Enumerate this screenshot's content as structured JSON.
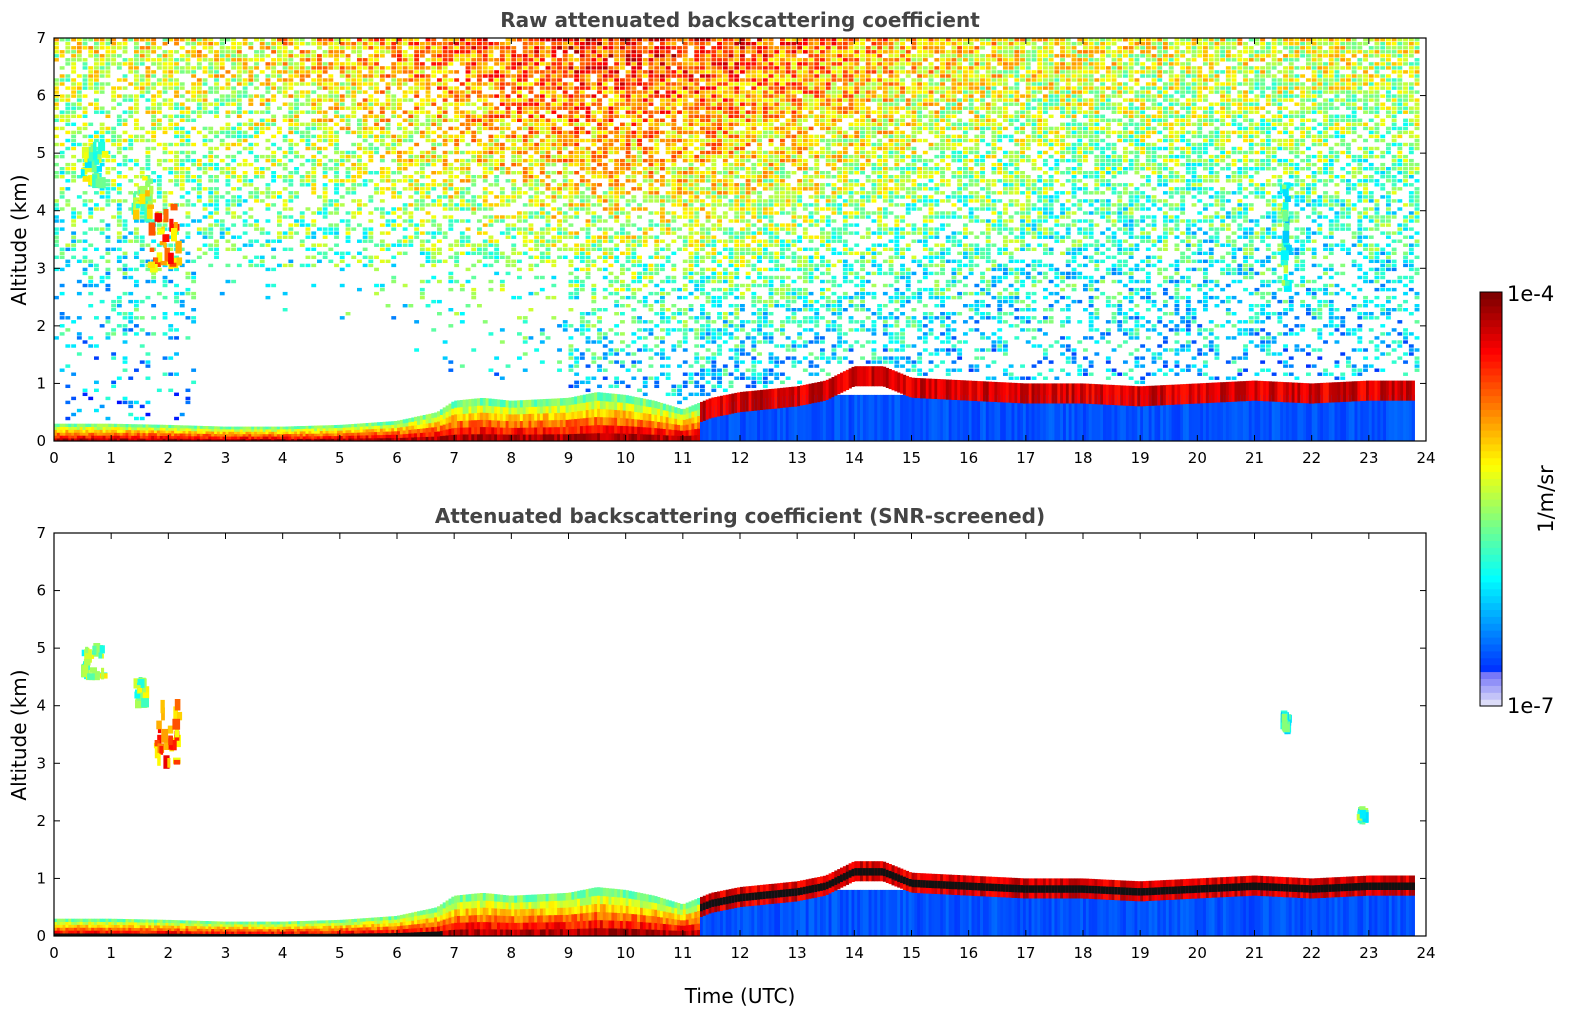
{
  "chart_data": [
    {
      "type": "heatmap",
      "title": "Raw attenuated backscattering coefficient",
      "xlabel": "",
      "ylabel": "Altitude (km)",
      "xlim": [
        0,
        24
      ],
      "ylim": [
        0,
        7
      ],
      "xticks": [
        "0",
        "1",
        "2",
        "3",
        "4",
        "5",
        "6",
        "7",
        "8",
        "9",
        "10",
        "11",
        "12",
        "13",
        "14",
        "15",
        "16",
        "17",
        "18",
        "19",
        "20",
        "21",
        "22",
        "23",
        "24"
      ],
      "yticks": [
        "0",
        "1",
        "2",
        "3",
        "4",
        "5",
        "6",
        "7"
      ],
      "boundary_layer_top_km": [
        [
          0,
          0.3
        ],
        [
          1,
          0.3
        ],
        [
          2,
          0.28
        ],
        [
          3,
          0.25
        ],
        [
          4,
          0.25
        ],
        [
          5,
          0.28
        ],
        [
          6,
          0.35
        ],
        [
          6.7,
          0.5
        ],
        [
          7,
          0.7
        ],
        [
          7.5,
          0.75
        ],
        [
          8,
          0.7
        ],
        [
          9,
          0.75
        ],
        [
          9.5,
          0.85
        ],
        [
          10,
          0.8
        ],
        [
          10.5,
          0.7
        ],
        [
          11,
          0.55
        ],
        [
          11.5,
          0.75
        ],
        [
          12,
          0.85
        ],
        [
          13,
          0.95
        ],
        [
          13.5,
          1.05
        ],
        [
          14,
          1.3
        ],
        [
          14.5,
          1.3
        ],
        [
          15,
          1.1
        ],
        [
          16,
          1.05
        ],
        [
          17,
          1.0
        ],
        [
          18,
          1.0
        ],
        [
          19,
          0.95
        ],
        [
          20,
          1.0
        ],
        [
          21,
          1.05
        ],
        [
          22,
          1.0
        ],
        [
          23,
          1.05
        ],
        [
          23.8,
          1.05
        ]
      ],
      "clouds": [
        {
          "x0": 0.5,
          "x1": 0.9,
          "y0": 4.4,
          "y1": 5.1,
          "level": 0.5
        },
        {
          "x0": 1.4,
          "x1": 1.7,
          "y0": 3.9,
          "y1": 4.6,
          "level": 0.55
        },
        {
          "x0": 1.7,
          "x1": 2.2,
          "y0": 2.9,
          "y1": 4.1,
          "level": 0.75
        },
        {
          "x0": 21.5,
          "x1": 21.6,
          "y0": 2.5,
          "y1": 4.5,
          "level": 0.45
        }
      ],
      "noise": true
    },
    {
      "type": "heatmap",
      "title": "Attenuated backscattering coefficient (SNR-screened)",
      "xlabel": "Time (UTC)",
      "ylabel": "Altitude (km)",
      "xlim": [
        0,
        24
      ],
      "ylim": [
        0,
        7
      ],
      "xticks": [
        "0",
        "1",
        "2",
        "3",
        "4",
        "5",
        "6",
        "7",
        "8",
        "9",
        "10",
        "11",
        "12",
        "13",
        "14",
        "15",
        "16",
        "17",
        "18",
        "19",
        "20",
        "21",
        "22",
        "23",
        "24"
      ],
      "yticks": [
        "0",
        "1",
        "2",
        "3",
        "4",
        "5",
        "6",
        "7"
      ],
      "clouds": [
        {
          "x0": 0.5,
          "x1": 0.9,
          "y0": 4.5,
          "y1": 5.0,
          "level": 0.5
        },
        {
          "x0": 1.45,
          "x1": 1.6,
          "y0": 4.0,
          "y1": 4.4,
          "level": 0.5
        },
        {
          "x0": 1.75,
          "x1": 2.2,
          "y0": 3.0,
          "y1": 4.05,
          "level": 0.75
        },
        {
          "x0": 21.5,
          "x1": 21.6,
          "y0": 3.6,
          "y1": 3.8,
          "level": 0.45
        },
        {
          "x0": 22.85,
          "x1": 22.95,
          "y0": 2.05,
          "y1": 2.15,
          "level": 0.45
        }
      ],
      "noise": false
    }
  ],
  "colorbar": {
    "max_label": "1e-4",
    "min_label": "1e-7",
    "unit_label": "1/m/sr",
    "colormap": "jet",
    "low_color": "#e8e8f8",
    "high_color": "#7f0000"
  }
}
